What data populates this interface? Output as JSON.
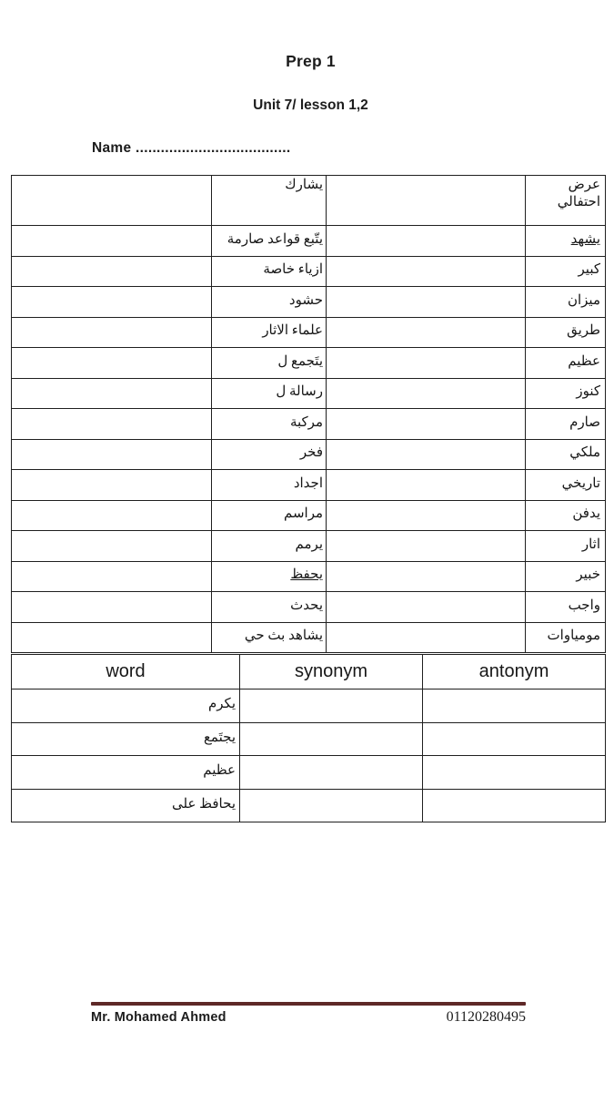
{
  "header": {
    "title": "Prep 1",
    "subtitle": "Unit 7/ lesson 1,2",
    "name_line": "Name ....................................."
  },
  "vocab_table": {
    "rows": [
      {
        "word": "عرض احتفالي",
        "meaning": "يشارك"
      },
      {
        "word": "يشهد",
        "word_underline": true,
        "meaning": "يتّبع قواعد صارمة"
      },
      {
        "word": "كبير",
        "meaning": "ازياء خاصة"
      },
      {
        "word": "ميزان",
        "meaning": "حشود"
      },
      {
        "word": "طريق",
        "meaning": "علماء الاثار"
      },
      {
        "word": "عظيم",
        "meaning": "يتَجمع ل"
      },
      {
        "word": "كنوز",
        "meaning": "رسالة ل"
      },
      {
        "word": "صارم",
        "meaning": "مركبة"
      },
      {
        "word": "ملكي",
        "meaning": "فخر"
      },
      {
        "word": "تاريخي",
        "meaning": "اجداد"
      },
      {
        "word": "يدفن",
        "meaning": "مراسم"
      },
      {
        "word": "اثار",
        "meaning": "يرمم"
      },
      {
        "word": "خبير",
        "meaning": "يحفظ",
        "meaning_underline": true
      },
      {
        "word": "واجب",
        "meaning": "يحدث"
      },
      {
        "word": "مومياوات",
        "meaning": "يشاهد بث حي"
      }
    ]
  },
  "wsa_table": {
    "headers": [
      "word",
      "synonym",
      "antonym"
    ],
    "rows": [
      {
        "word": "يكرم"
      },
      {
        "word": "يجتَمع"
      },
      {
        "word": "عظيم"
      },
      {
        "word": "يحافظ على"
      }
    ]
  },
  "footer": {
    "teacher": "Mr. Mohamed Ahmed",
    "phone": "01120280495",
    "rule_color": "#5e2827"
  }
}
